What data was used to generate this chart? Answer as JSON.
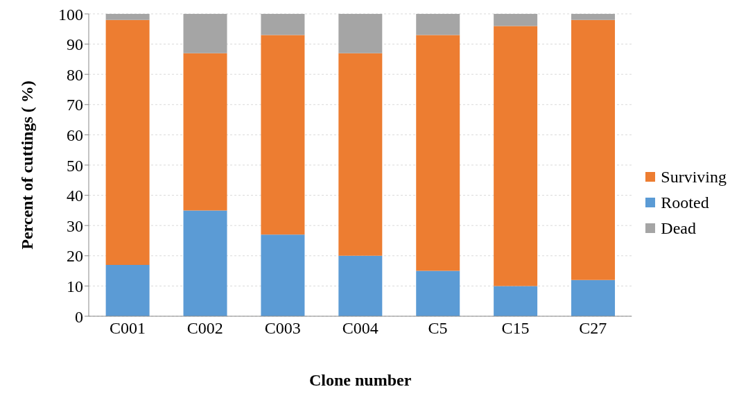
{
  "chart_data": {
    "type": "bar",
    "stacked": true,
    "xlabel": "Clone number",
    "ylabel": "Percent of cuttings ( %)",
    "categories": [
      "C001",
      "C002",
      "C003",
      "C004",
      "C5",
      "C15",
      "C27"
    ],
    "series": [
      {
        "name": "Rooted",
        "color": "#5b9bd5",
        "values": [
          17,
          35,
          27,
          20,
          15,
          10,
          12
        ]
      },
      {
        "name": "Surviving",
        "color": "#ed7d31",
        "values": [
          81,
          52,
          66,
          67,
          78,
          86,
          86
        ]
      },
      {
        "name": "Dead",
        "color": "#a5a5a5",
        "values": [
          2,
          13,
          7,
          13,
          7,
          4,
          2
        ]
      }
    ],
    "ylim": [
      0,
      100
    ],
    "yticks": [
      0,
      10,
      20,
      30,
      40,
      50,
      60,
      70,
      80,
      90,
      100
    ],
    "grid": "y",
    "legend": "right"
  }
}
